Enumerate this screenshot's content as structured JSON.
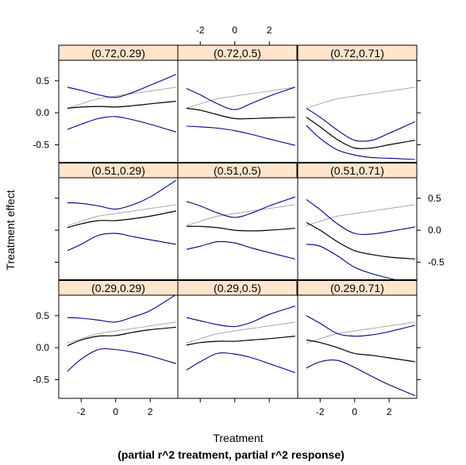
{
  "chart_data": {
    "type": "line",
    "xlabel": "Treatment",
    "ylabel": "Treatment effect",
    "subtitle": "(partial r^2 treatment, partial r^2 response)",
    "xlim": [
      -3.3,
      3.6
    ],
    "ylim": [
      -0.78,
      0.82
    ],
    "x_ticks": [
      -2,
      0,
      2
    ],
    "y_ticks": [
      0.5,
      0.0,
      -0.5
    ],
    "x_tick_labels": [
      "-2",
      "0",
      "2"
    ],
    "y_tick_labels": [
      "0.5",
      "0.0",
      "-0.5"
    ],
    "grid": false,
    "colors": {
      "strip": "#ffe5cc",
      "estimate": "#000000",
      "bounds": "#00008b",
      "reference": "#a9a9a9"
    },
    "series_keys": [
      "reference",
      "estimate",
      "upper",
      "lower"
    ],
    "x": [
      -2.8,
      -2.0,
      -1.0,
      0.0,
      1.0,
      2.0,
      3.5
    ],
    "panels": [
      {
        "label": "(0.72,0.29)",
        "reference": [
          0.07,
          0.14,
          0.22,
          0.26,
          0.3,
          0.34,
          0.4
        ],
        "estimate": [
          0.07,
          0.09,
          0.1,
          0.09,
          0.11,
          0.14,
          0.18
        ],
        "upper": [
          0.4,
          0.35,
          0.28,
          0.24,
          0.32,
          0.43,
          0.6
        ],
        "lower": [
          -0.26,
          -0.18,
          -0.09,
          -0.06,
          -0.11,
          -0.18,
          -0.3
        ]
      },
      {
        "label": "(0.72,0.5)",
        "reference": [
          0.07,
          0.14,
          0.22,
          0.26,
          0.3,
          0.34,
          0.4
        ],
        "estimate": [
          0.07,
          0.04,
          -0.03,
          -0.09,
          -0.09,
          -0.08,
          -0.07
        ],
        "upper": [
          0.38,
          0.28,
          0.14,
          0.05,
          0.15,
          0.26,
          0.4
        ],
        "lower": [
          -0.21,
          -0.22,
          -0.24,
          -0.28,
          -0.34,
          -0.41,
          -0.51
        ]
      },
      {
        "label": "(0.72,0.71)",
        "reference": [
          0.07,
          0.14,
          0.22,
          0.26,
          0.3,
          0.34,
          0.4
        ],
        "estimate": [
          -0.07,
          -0.22,
          -0.42,
          -0.55,
          -0.55,
          -0.5,
          -0.43
        ],
        "upper": [
          0.07,
          -0.07,
          -0.27,
          -0.43,
          -0.43,
          -0.32,
          -0.14
        ],
        "lower": [
          -0.2,
          -0.4,
          -0.58,
          -0.66,
          -0.7,
          -0.71,
          -0.73
        ]
      },
      {
        "label": "(0.51,0.29)",
        "reference": [
          0.07,
          0.14,
          0.22,
          0.26,
          0.3,
          0.34,
          0.4
        ],
        "estimate": [
          0.04,
          0.1,
          0.15,
          0.15,
          0.18,
          0.22,
          0.3
        ],
        "upper": [
          0.43,
          0.42,
          0.38,
          0.33,
          0.4,
          0.52,
          0.78
        ],
        "lower": [
          -0.32,
          -0.22,
          -0.08,
          -0.05,
          -0.1,
          -0.15,
          -0.22
        ]
      },
      {
        "label": "(0.51,0.5)",
        "reference": [
          0.07,
          0.14,
          0.22,
          0.26,
          0.3,
          0.34,
          0.4
        ],
        "estimate": [
          0.06,
          0.06,
          0.04,
          0.0,
          -0.01,
          0.0,
          0.03
        ],
        "upper": [
          0.45,
          0.38,
          0.27,
          0.2,
          0.27,
          0.38,
          0.52
        ],
        "lower": [
          -0.3,
          -0.25,
          -0.18,
          -0.2,
          -0.28,
          -0.35,
          -0.45
        ]
      },
      {
        "label": "(0.51,0.71)",
        "reference": [
          0.07,
          0.14,
          0.22,
          0.26,
          0.3,
          0.34,
          0.4
        ],
        "estimate": [
          0.12,
          0.0,
          -0.18,
          -0.32,
          -0.38,
          -0.42,
          -0.45
        ],
        "upper": [
          0.48,
          0.32,
          0.1,
          -0.05,
          -0.06,
          -0.02,
          0.05
        ],
        "lower": [
          -0.22,
          -0.25,
          -0.4,
          -0.58,
          -0.68,
          -0.75,
          -0.85
        ]
      },
      {
        "label": "(0.29,0.29)",
        "reference": [
          0.07,
          0.14,
          0.22,
          0.26,
          0.3,
          0.34,
          0.4
        ],
        "estimate": [
          0.03,
          0.12,
          0.18,
          0.19,
          0.24,
          0.28,
          0.32
        ],
        "upper": [
          0.47,
          0.46,
          0.43,
          0.4,
          0.48,
          0.58,
          0.83
        ],
        "lower": [
          -0.37,
          -0.18,
          -0.03,
          -0.03,
          -0.07,
          -0.13,
          -0.25
        ]
      },
      {
        "label": "(0.29,0.5)",
        "reference": [
          0.07,
          0.14,
          0.22,
          0.26,
          0.3,
          0.34,
          0.4
        ],
        "estimate": [
          0.04,
          0.08,
          0.1,
          0.1,
          0.12,
          0.14,
          0.18
        ],
        "upper": [
          0.47,
          0.42,
          0.36,
          0.33,
          0.4,
          0.52,
          0.65
        ],
        "lower": [
          -0.35,
          -0.22,
          -0.09,
          -0.1,
          -0.16,
          -0.25,
          -0.39
        ]
      },
      {
        "label": "(0.29,0.71)",
        "reference": [
          0.07,
          0.14,
          0.22,
          0.26,
          0.3,
          0.34,
          0.4
        ],
        "estimate": [
          0.12,
          0.08,
          0.0,
          -0.09,
          -0.12,
          -0.16,
          -0.22
        ],
        "upper": [
          0.5,
          0.38,
          0.22,
          0.18,
          0.2,
          0.25,
          0.35
        ],
        "lower": [
          -0.32,
          -0.22,
          -0.2,
          -0.31,
          -0.45,
          -0.58,
          -0.75
        ]
      }
    ]
  }
}
